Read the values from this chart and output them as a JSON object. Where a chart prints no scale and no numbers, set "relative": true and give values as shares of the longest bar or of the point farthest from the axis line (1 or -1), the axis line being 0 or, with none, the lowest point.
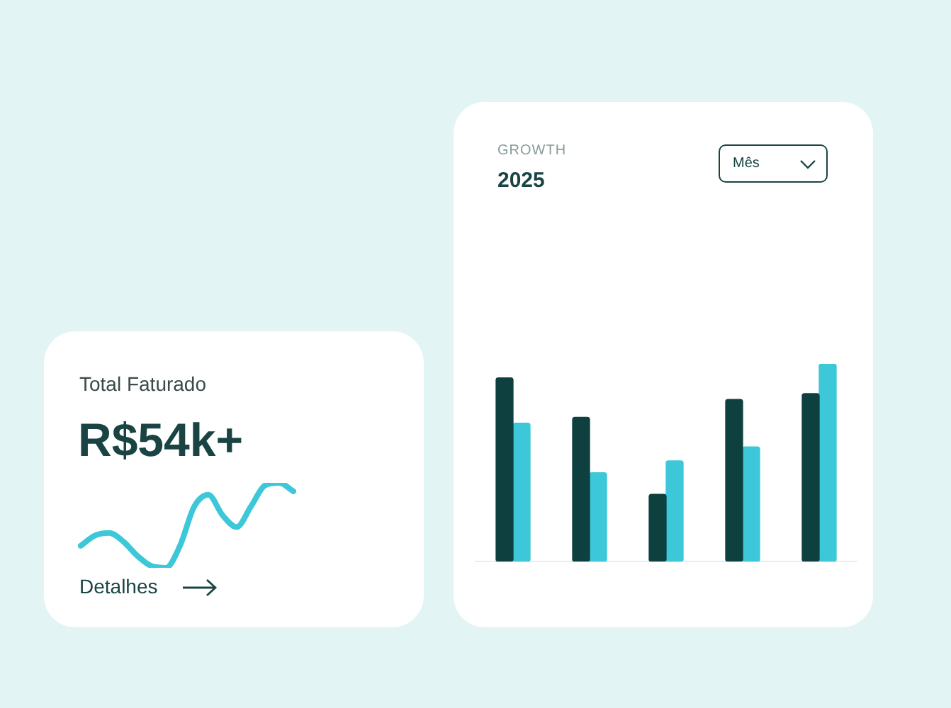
{
  "chart_data": [
    {
      "type": "bar",
      "subtitle": "GROWTH",
      "title": "2025",
      "categories": [
        null,
        null,
        null,
        null,
        null
      ],
      "relative": true,
      "grid": false,
      "legend": false,
      "series": [
        {
          "color": "#0f4040",
          "values": [
            0.93,
            0.73,
            0.34,
            0.82,
            0.85
          ]
        },
        {
          "color": "#3cc8d8",
          "values": [
            0.7,
            0.45,
            0.51,
            0.58,
            1
          ]
        }
      ],
      "annotations": [
        "Mês"
      ]
    },
    {
      "type": "other",
      "title": "Total Faturado",
      "annotations": [
        "R$54k+",
        "Detalhes"
      ]
    },
    {
      "type": "line",
      "categories": [
        null,
        null,
        null,
        null,
        null,
        null,
        null,
        null,
        null,
        null,
        null,
        null,
        null,
        null,
        null,
        null
      ],
      "relative": true,
      "grid": false,
      "legend": false,
      "marker": "none",
      "series": [
        {
          "color": "#3cc8d8",
          "values": [
            0.26,
            0.38,
            0.41,
            0.31,
            0.14,
            0.02,
            0,
            0.26,
            0.72,
            0.86,
            0.62,
            0.48,
            0.72,
            0.97,
            1,
            0.9
          ]
        }
      ]
    }
  ]
}
